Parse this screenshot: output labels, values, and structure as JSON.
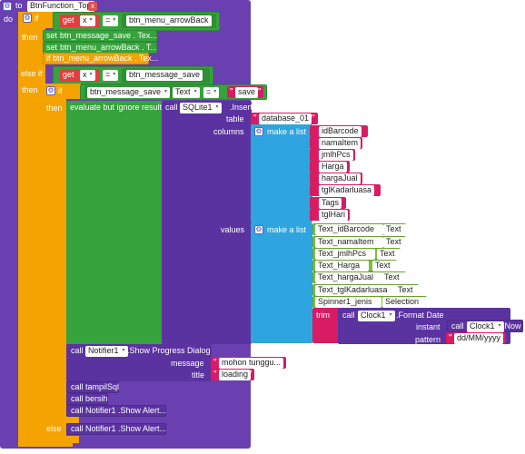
{
  "procedure": {
    "to": "to",
    "name": "BtnFunction_Top",
    "do": "do"
  },
  "if1": {
    "if": "if",
    "then": "then",
    "else_if": "else if",
    "then2": "then",
    "else": "else"
  },
  "get1": {
    "get": "get",
    "var": "x",
    "op": "=",
    "value": "btn_menu_arrowBack"
  },
  "sets": [
    {
      "set": "set",
      "text": "btn_message_save . Tex..."
    },
    {
      "set": "set",
      "text": "btn_menu_arrowBack . T..."
    },
    {
      "set": "if",
      "text": "btn_menu_arrowBack . Tex..."
    }
  ],
  "get2": {
    "get": "get",
    "var": "x",
    "op": "=",
    "value": "btn_message_save"
  },
  "if2": {
    "if": "if",
    "left_component": "btn_message_save",
    "left_prop": "Text",
    "op": "=",
    "right": "save",
    "then": "then",
    "else": "else"
  },
  "evaluate": {
    "label": "evaluate but ignore result"
  },
  "sqlite": {
    "call": "call",
    "component": "SQLite1",
    "method": ".Insert",
    "table_label": "table",
    "table": "database_01",
    "columns_label": "columns",
    "make_list": "make a list",
    "columns": [
      "idBarcode",
      "namaItem",
      "jmlhPcs",
      "Harga",
      "hargaJual",
      "tglKadarluasa",
      "Tags",
      "tglHari"
    ],
    "values_label": "values",
    "values": [
      {
        "comp": "Text_idBarcode",
        "prop": "Text"
      },
      {
        "comp": "Text_namaItem",
        "prop": "Text"
      },
      {
        "comp": "Text_jmlhPcs",
        "prop": "Text"
      },
      {
        "comp": "Text_Harga",
        "prop": "Text"
      },
      {
        "comp": "Text_hargaJual",
        "prop": "Text"
      },
      {
        "comp": "Text_tglKadarluasa",
        "prop": "Text"
      },
      {
        "comp": "Spinner1_jenis",
        "prop": "Selection"
      }
    ],
    "trim": "trim",
    "clock_call": "call",
    "clock": "Clock1",
    "format": ".Format Date",
    "instant_label": "instant",
    "now_call": "call",
    "now_comp": "Clock1",
    "now": ".Now",
    "pattern_label": "pattern",
    "pattern": "dd/MM/yyyy"
  },
  "progress": {
    "call": "call",
    "component": "Notifier1",
    "method": ".Show Progress Dialog",
    "message_label": "message",
    "message": "mohon tunggu...",
    "title_label": "title",
    "title": "loading"
  },
  "calls": [
    {
      "call": "call",
      "name": "tampilSql"
    },
    {
      "call": "call",
      "name": "bersih"
    },
    {
      "call": "call",
      "name": "Notifier1 .Show Alert..."
    }
  ],
  "else_call": {
    "call": "call",
    "name": "Notifier1 .Show Alert..."
  },
  "colors": {
    "procedure": "#6a3fb0",
    "control": "#f5a300",
    "logic": "#36a33c",
    "variable": "#e33d3d",
    "text": "#d81b63",
    "list": "#2ea5de",
    "component": "#7cbf3a"
  }
}
